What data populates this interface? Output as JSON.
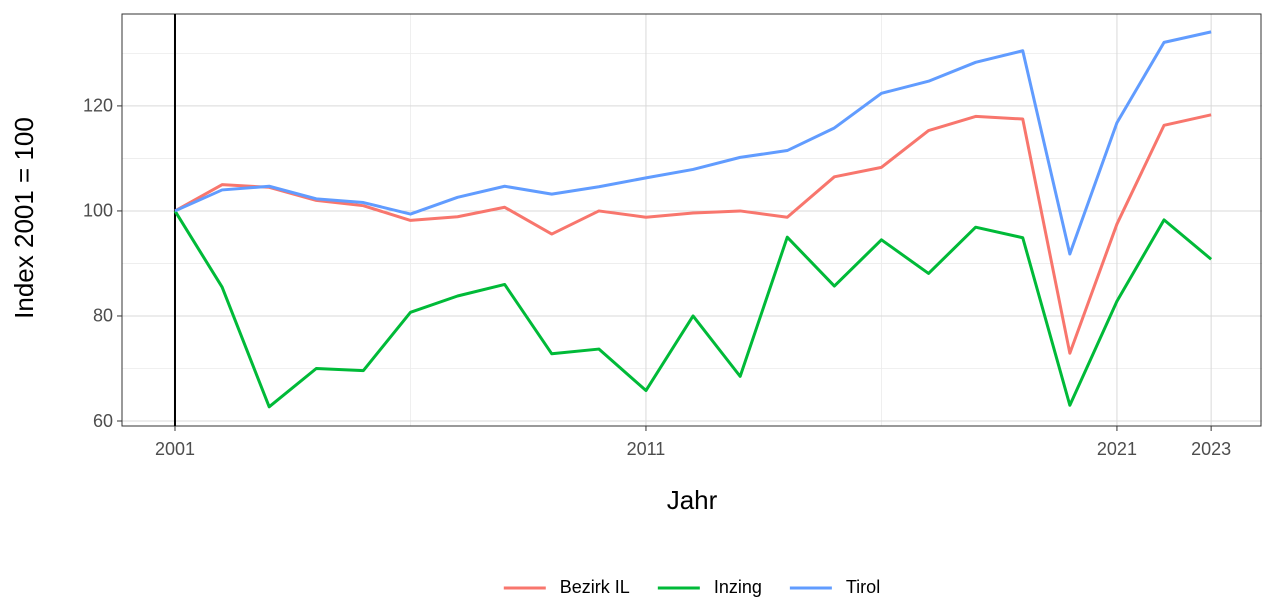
{
  "chart_data": {
    "type": "line",
    "x_label": "Jahr",
    "y_label": "Index 2001 = 100",
    "x": [
      2001,
      2002,
      2003,
      2004,
      2005,
      2006,
      2007,
      2008,
      2009,
      2010,
      2011,
      2012,
      2013,
      2014,
      2015,
      2016,
      2017,
      2018,
      2019,
      2020,
      2021,
      2022,
      2023
    ],
    "series": [
      {
        "name": "Bezirk IL",
        "color": "#F8766D",
        "values": [
          100,
          105,
          104.5,
          102,
          101,
          98.2,
          98.9,
          100.7,
          95.6,
          100,
          98.8,
          99.6,
          100,
          98.8,
          106.5,
          108.3,
          115.3,
          118,
          117.5,
          72.9,
          97.5,
          116.3,
          118.3
        ]
      },
      {
        "name": "Inzing",
        "color": "#00BA38",
        "values": [
          100,
          85.5,
          62.7,
          70,
          69.6,
          80.7,
          83.8,
          86,
          72.8,
          73.7,
          65.8,
          80,
          68.5,
          95,
          85.7,
          94.5,
          88.1,
          96.9,
          94.9,
          63,
          82.8,
          98.3,
          90.8
        ]
      },
      {
        "name": "Tirol",
        "color": "#619CFF",
        "values": [
          100,
          104,
          104.7,
          102.3,
          101.6,
          99.4,
          102.6,
          104.7,
          103.2,
          104.6,
          106.3,
          107.9,
          110.2,
          111.5,
          115.8,
          122.4,
          124.7,
          128.3,
          130.5,
          91.8,
          116.8,
          132.1,
          134.1
        ]
      }
    ],
    "xlim": [
      1999.875,
      2024.08
    ],
    "ylim": [
      59.05,
      137.5
    ],
    "xticks": [
      2001,
      2011,
      2021,
      2023
    ],
    "yticks": [
      60,
      80,
      100,
      120
    ],
    "xminor": [
      2006,
      2016
    ],
    "yminor": [
      70,
      90,
      110,
      130
    ],
    "vline": 2001,
    "grid": true,
    "legend": "bottom"
  }
}
